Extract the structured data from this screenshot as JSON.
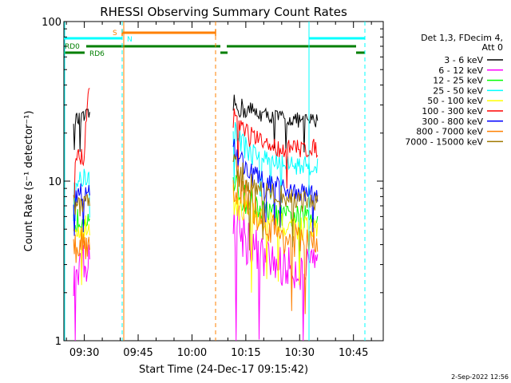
{
  "chart_data": {
    "type": "line",
    "title": "RHESSI Observing Summary Count Rates",
    "xlabel": "Start Time (24-Dec-17 09:15:42)",
    "ylabel": "Count Rate (s⁻¹ detector⁻¹)",
    "yscale": "log",
    "ylim": [
      1,
      100
    ],
    "xlim_minutes": [
      9.3,
      98.3
    ],
    "y_ticks": [
      {
        "value": 1,
        "label": "1"
      },
      {
        "value": 10,
        "label": "10"
      },
      {
        "value": 100,
        "label": "100"
      }
    ],
    "x_ticks": [
      {
        "minutes": 15,
        "label": "09:30"
      },
      {
        "minutes": 30,
        "label": "09:45"
      },
      {
        "minutes": 45,
        "label": "10:00"
      },
      {
        "minutes": 60,
        "label": "10:15"
      },
      {
        "minutes": 75,
        "label": "10:30"
      },
      {
        "minutes": 90,
        "label": "10:45"
      }
    ],
    "legend": {
      "header": [
        "Det 1,3, FDecim 4,",
        "Att 0"
      ],
      "placement": "right",
      "entries": [
        {
          "label": "3 - 6 keV",
          "color": "#000000"
        },
        {
          "label": "6 - 12 keV",
          "color": "#ff00ff"
        },
        {
          "label": "12 - 25 keV",
          "color": "#00ff00"
        },
        {
          "label": "25 - 50 keV",
          "color": "#00ffff"
        },
        {
          "label": "50 - 100 keV",
          "color": "#ffff00"
        },
        {
          "label": "100 - 300 keV",
          "color": "#ff0000"
        },
        {
          "label": "300 - 800 keV",
          "color": "#0000ff"
        },
        {
          "label": "800 - 7000 keV",
          "color": "#ff8000"
        },
        {
          "label": "7000 - 15000 keV",
          "color": "#a07800"
        }
      ]
    },
    "flags": [
      {
        "label": "S",
        "color": "#ff8000"
      },
      {
        "label": "N",
        "color": "#00ffff"
      },
      {
        "label": "RD0",
        "color": "#007f00"
      },
      {
        "label": "RD6",
        "color": "#007f00"
      }
    ],
    "series": [
      {
        "name": "3 - 6 keV",
        "color": "#000000",
        "segments": [
          {
            "x": [
              12.0,
              13.5,
              15.0,
              16.5
            ],
            "y": [
              25,
              24,
              25,
              26
            ]
          },
          {
            "x": [
              56.5,
              60,
              65,
              70,
              75,
              80
            ],
            "y": [
              30,
              28,
              26,
              25,
              24,
              24
            ]
          }
        ]
      },
      {
        "name": "6 - 12 keV",
        "color": "#ff00ff",
        "segments": [
          {
            "x": [
              12.0,
              13.5,
              15.0,
              16.5
            ],
            "y": [
              2.5,
              3.0,
              3.2,
              3.0
            ]
          },
          {
            "x": [
              56.5,
              60,
              65,
              70,
              75,
              80
            ],
            "y": [
              6.0,
              4.5,
              3.3,
              2.9,
              2.8,
              2.8
            ]
          }
        ]
      },
      {
        "name": "12 - 25 keV",
        "color": "#00ff00",
        "segments": [
          {
            "x": [
              12.0,
              13.5,
              15.0,
              16.5
            ],
            "y": [
              5.5,
              5.8,
              6.0,
              6.2
            ]
          },
          {
            "x": [
              56.5,
              60,
              65,
              70,
              75,
              80
            ],
            "y": [
              9.0,
              7.5,
              6.5,
              6.0,
              6.0,
              6.0
            ]
          }
        ]
      },
      {
        "name": "25 - 50 keV",
        "color": "#00ffff",
        "segments": [
          {
            "x": [
              12.0,
              13.5,
              15.0,
              16.5
            ],
            "y": [
              10,
              10,
              10.5,
              10.5
            ]
          },
          {
            "x": [
              56.5,
              60,
              65,
              70,
              75,
              80
            ],
            "y": [
              22,
              16,
              14,
              13,
              12.5,
              12.5
            ]
          }
        ]
      },
      {
        "name": "50 - 100 keV",
        "color": "#ffff00",
        "segments": [
          {
            "x": [
              12.0,
              13.5,
              15.0,
              16.5
            ],
            "y": [
              4.5,
              5.0,
              5.0,
              5.2
            ]
          },
          {
            "x": [
              56.5,
              60,
              65,
              70,
              75,
              80
            ],
            "y": [
              8.0,
              6.5,
              5.5,
              5.2,
              5.0,
              5.0
            ]
          }
        ]
      },
      {
        "name": "100 - 300 keV",
        "color": "#ff0000",
        "segments": [
          {
            "x": [
              12.0,
              13.5,
              15.0,
              16.5
            ],
            "y": [
              14,
              14,
              14.5,
              40
            ]
          },
          {
            "x": [
              56.5,
              60,
              65,
              70,
              75,
              80
            ],
            "y": [
              26,
              20,
              17,
              16,
              16,
              16
            ]
          }
        ]
      },
      {
        "name": "300 - 800 keV",
        "color": "#0000ff",
        "segments": [
          {
            "x": [
              12.0,
              13.5,
              15.0,
              16.5
            ],
            "y": [
              8.0,
              8.5,
              8.5,
              9.0
            ]
          },
          {
            "x": [
              56.5,
              60,
              65,
              70,
              75,
              80
            ],
            "y": [
              16,
              12,
              10,
              9,
              8.5,
              8.5
            ]
          }
        ]
      },
      {
        "name": "800 - 7000 keV",
        "color": "#ff8000",
        "segments": [
          {
            "x": [
              12.0,
              13.5,
              15.0,
              16.5
            ],
            "y": [
              3.5,
              4.0,
              4.2,
              4.0
            ]
          },
          {
            "x": [
              56.5,
              60,
              65,
              70,
              75,
              80
            ],
            "y": [
              10,
              7.5,
              5.5,
              4.5,
              4.2,
              4.0
            ]
          }
        ]
      },
      {
        "name": "7000 - 15000 keV",
        "color": "#a07800",
        "segments": [
          {
            "x": [
              12.0,
              13.5,
              15.0,
              16.5
            ],
            "y": [
              7.0,
              7.0,
              7.5,
              7.5
            ]
          },
          {
            "x": [
              56.5,
              60,
              65,
              70,
              75,
              80
            ],
            "y": [
              12,
              10,
              8.5,
              8.0,
              7.5,
              7.5
            ]
          }
        ]
      }
    ]
  },
  "footer": {
    "timestamp": "2-Sep-2022 12:56"
  }
}
